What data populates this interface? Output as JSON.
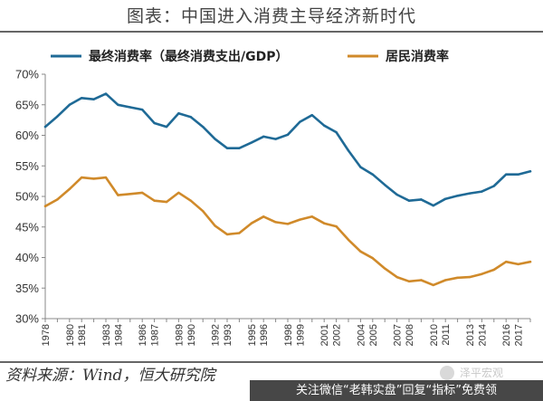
{
  "header": {
    "title": "图表：中国进入消费主导经济新时代"
  },
  "footer": {
    "source": "资料来源：Wind，恒大研究院",
    "watermark": "泽平宏观",
    "banner": "关注微信“老韩实盘”回复“指标”免费领"
  },
  "chart_data": {
    "type": "line",
    "categories": [
      "1978",
      "1979",
      "1980",
      "1981",
      "1982",
      "1983",
      "1984",
      "1985",
      "1986",
      "1987",
      "1988",
      "1989",
      "1990",
      "1991",
      "1992",
      "1993",
      "1994",
      "1995",
      "1996",
      "1997",
      "1998",
      "1999",
      "2000",
      "2001",
      "2002",
      "2003",
      "2004",
      "2005",
      "2006",
      "2007",
      "2008",
      "2009",
      "2010",
      "2011",
      "2012",
      "2013",
      "2014",
      "2015",
      "2016",
      "2017",
      "2018"
    ],
    "x_tick_labels": [
      "1978",
      "1980",
      "1981",
      "1983",
      "1984",
      "1986",
      "1987",
      "1989",
      "1990",
      "1992",
      "1993",
      "1995",
      "1996",
      "1998",
      "1999",
      "2001",
      "2002",
      "2004",
      "2005",
      "2007",
      "2008",
      "2010",
      "2011",
      "2013",
      "2014",
      "2016",
      "2017"
    ],
    "series": [
      {
        "name": "最终消费率（最终消费支出/GDP）",
        "color": "#1f6a96",
        "values": [
          61.4,
          63.1,
          65.0,
          66.1,
          65.9,
          66.8,
          65.0,
          64.6,
          64.2,
          62.0,
          61.4,
          63.6,
          63.0,
          61.4,
          59.4,
          57.9,
          57.9,
          58.8,
          59.8,
          59.4,
          60.1,
          62.2,
          63.3,
          61.6,
          60.5,
          57.5,
          54.8,
          53.6,
          51.9,
          50.3,
          49.3,
          49.5,
          48.5,
          49.6,
          50.1,
          50.5,
          50.8,
          51.7,
          53.6,
          53.6,
          54.1
        ]
      },
      {
        "name": "居民消费率",
        "color": "#d08a2a",
        "values": [
          48.4,
          49.5,
          51.2,
          53.1,
          52.9,
          53.1,
          50.2,
          50.4,
          50.6,
          49.3,
          49.1,
          50.6,
          49.3,
          47.6,
          45.2,
          43.8,
          44.0,
          45.6,
          46.7,
          45.8,
          45.5,
          46.2,
          46.7,
          45.6,
          45.1,
          42.9,
          41.0,
          39.9,
          38.2,
          36.8,
          36.1,
          36.3,
          35.5,
          36.3,
          36.7,
          36.8,
          37.3,
          38.0,
          39.3,
          38.9,
          39.3
        ]
      }
    ],
    "ylim": [
      30,
      70
    ],
    "y_ticks": [
      "30%",
      "35%",
      "40%",
      "45%",
      "50%",
      "55%",
      "60%",
      "65%",
      "70%"
    ],
    "legend_position": "top",
    "grid": false
  }
}
